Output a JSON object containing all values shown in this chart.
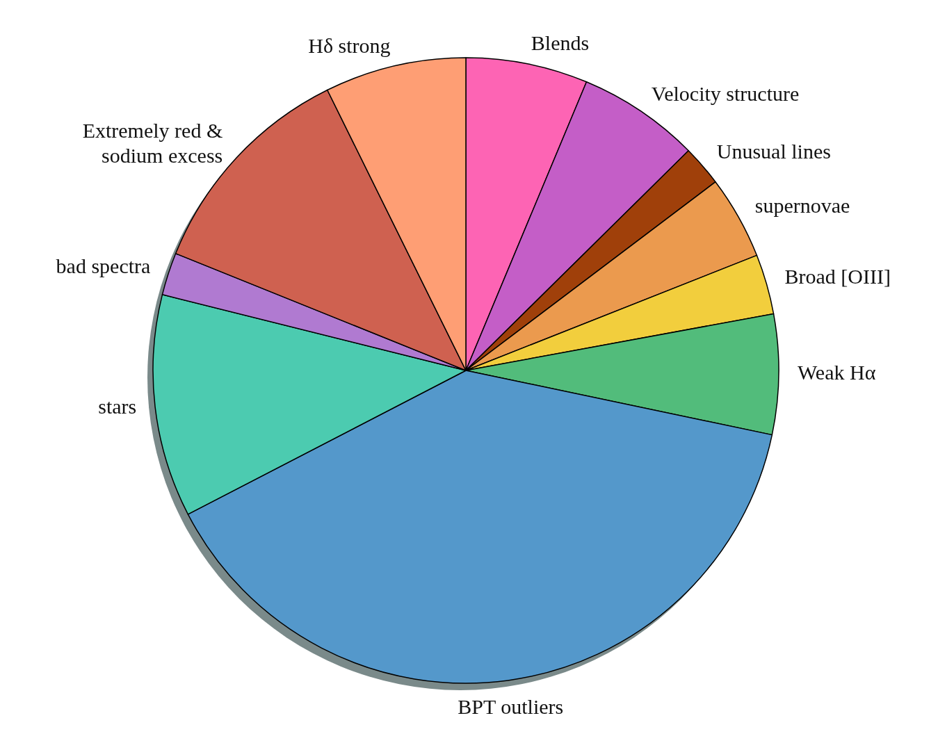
{
  "chart_data": {
    "type": "pie",
    "categories": [
      "Blends",
      "Velocity structure",
      "Unusual lines",
      "supernovae",
      "Broad [OIII]",
      "Weak Hα",
      "BPT outliers",
      "stars",
      "bad spectra",
      "Extremely red & sodium excess",
      "Hδ strong"
    ],
    "values": [
      6.3,
      6.3,
      2.1,
      4.3,
      3.1,
      6.2,
      39.1,
      11.5,
      2.2,
      11.6,
      7.3
    ],
    "colors": [
      "#fd64b4",
      "#c45ec7",
      "#a0400a",
      "#eb9a4e",
      "#f2ce3d",
      "#52bc7b",
      "#5498cb",
      "#4ccbb0",
      "#b07ad1",
      "#cf6150",
      "#fe9e74"
    ]
  }
}
